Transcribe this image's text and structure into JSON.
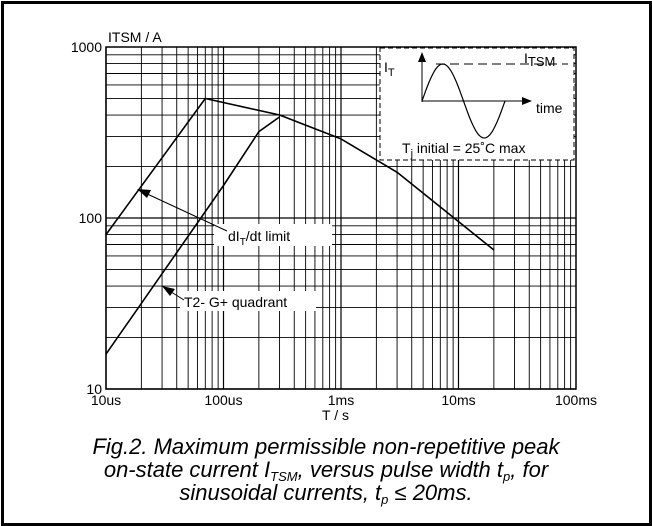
{
  "chart_data": {
    "type": "line",
    "x_scale": "log",
    "y_scale": "log",
    "xlim": [
      "10us",
      "100ms"
    ],
    "ylim": [
      10,
      1000
    ],
    "ylabel": "ITSM / A",
    "xlabel": "T / s",
    "x_tick_labels": [
      "10us",
      "100us",
      "1ms",
      "10ms",
      "100ms"
    ],
    "y_tick_labels": [
      "10",
      "100",
      "1000"
    ],
    "grid": true,
    "series": [
      {
        "name": "dIT/dt limit",
        "x": [
          "10us",
          "70us",
          "300us",
          "1ms",
          "3ms",
          "20ms"
        ],
        "y": [
          80,
          500,
          400,
          290,
          185,
          65
        ]
      },
      {
        "name": "T2- G+ quadrant",
        "x": [
          "10us",
          "100us",
          "200us",
          "300us"
        ],
        "y": [
          16,
          155,
          320,
          390
        ]
      }
    ],
    "annotations": {
      "dit_label": "dIT/dt limit",
      "quadrant_label": "T2- G+ quadrant"
    },
    "inset": {
      "it_label": "IT",
      "itsm_label": "ITSM",
      "time_label": "time",
      "tj_label": "Tj initial = 25˚C max"
    }
  },
  "caption": {
    "line1": "Fig.2.   Maximum permissible non-repetitive peak",
    "line2_a": "on-state current I",
    "line2_sub": "TSM",
    "line2_b": ", versus pulse width t",
    "line2_sub2": "p",
    "line2_c": ", for",
    "line3_a": "sinusoidal currents, t",
    "line3_sub": "p",
    "line3_b": " ≤ 20ms."
  }
}
